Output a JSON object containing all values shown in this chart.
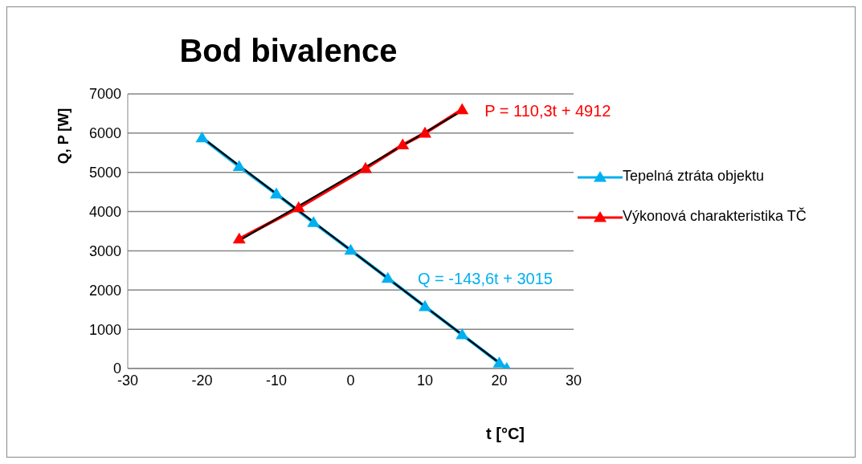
{
  "chart_data": {
    "type": "line",
    "title": "Bod bivalence",
    "xlabel": "t [°C]",
    "ylabel": "Q, P [W]",
    "xlim": [
      -30,
      30
    ],
    "xticks": [
      -30,
      -20,
      -10,
      0,
      10,
      20,
      30
    ],
    "ylim": [
      0,
      7000
    ],
    "yticks": [
      0,
      1000,
      2000,
      3000,
      4000,
      5000,
      6000,
      7000
    ],
    "grid": "y",
    "legend": "right",
    "marker": "triangle",
    "line_style": "solid",
    "series": [
      {
        "name": "Tepelná ztráta objektu",
        "color": "#00b0f0",
        "x": [
          -20,
          -15,
          -10,
          -5,
          0,
          5,
          10,
          15,
          20,
          21
        ],
        "values": [
          5880,
          5150,
          4450,
          3720,
          3015,
          2300,
          1580,
          860,
          140,
          0
        ]
      },
      {
        "name": "Výkonová charakteristika TČ",
        "color": "#ff0000",
        "x": [
          -15,
          -7,
          2,
          7,
          10,
          15
        ],
        "values": [
          3300,
          4100,
          5100,
          5700,
          6000,
          6600
        ]
      },
      {
        "type": "line",
        "color": "#000000",
        "marker": "none",
        "x": [
          -20,
          21
        ],
        "values": [
          5890,
          0
        ]
      },
      {
        "type": "line",
        "color": "#000000",
        "marker": "none",
        "x": [
          -15,
          15
        ],
        "values": [
          3260,
          6570
        ]
      }
    ],
    "annotations": [
      {
        "text": "Q = -143,6t + 3015",
        "x": 6,
        "y": 2300
      },
      {
        "text": "P = 110,3t + 4912",
        "x": 15,
        "y": 6566
      }
    ]
  }
}
